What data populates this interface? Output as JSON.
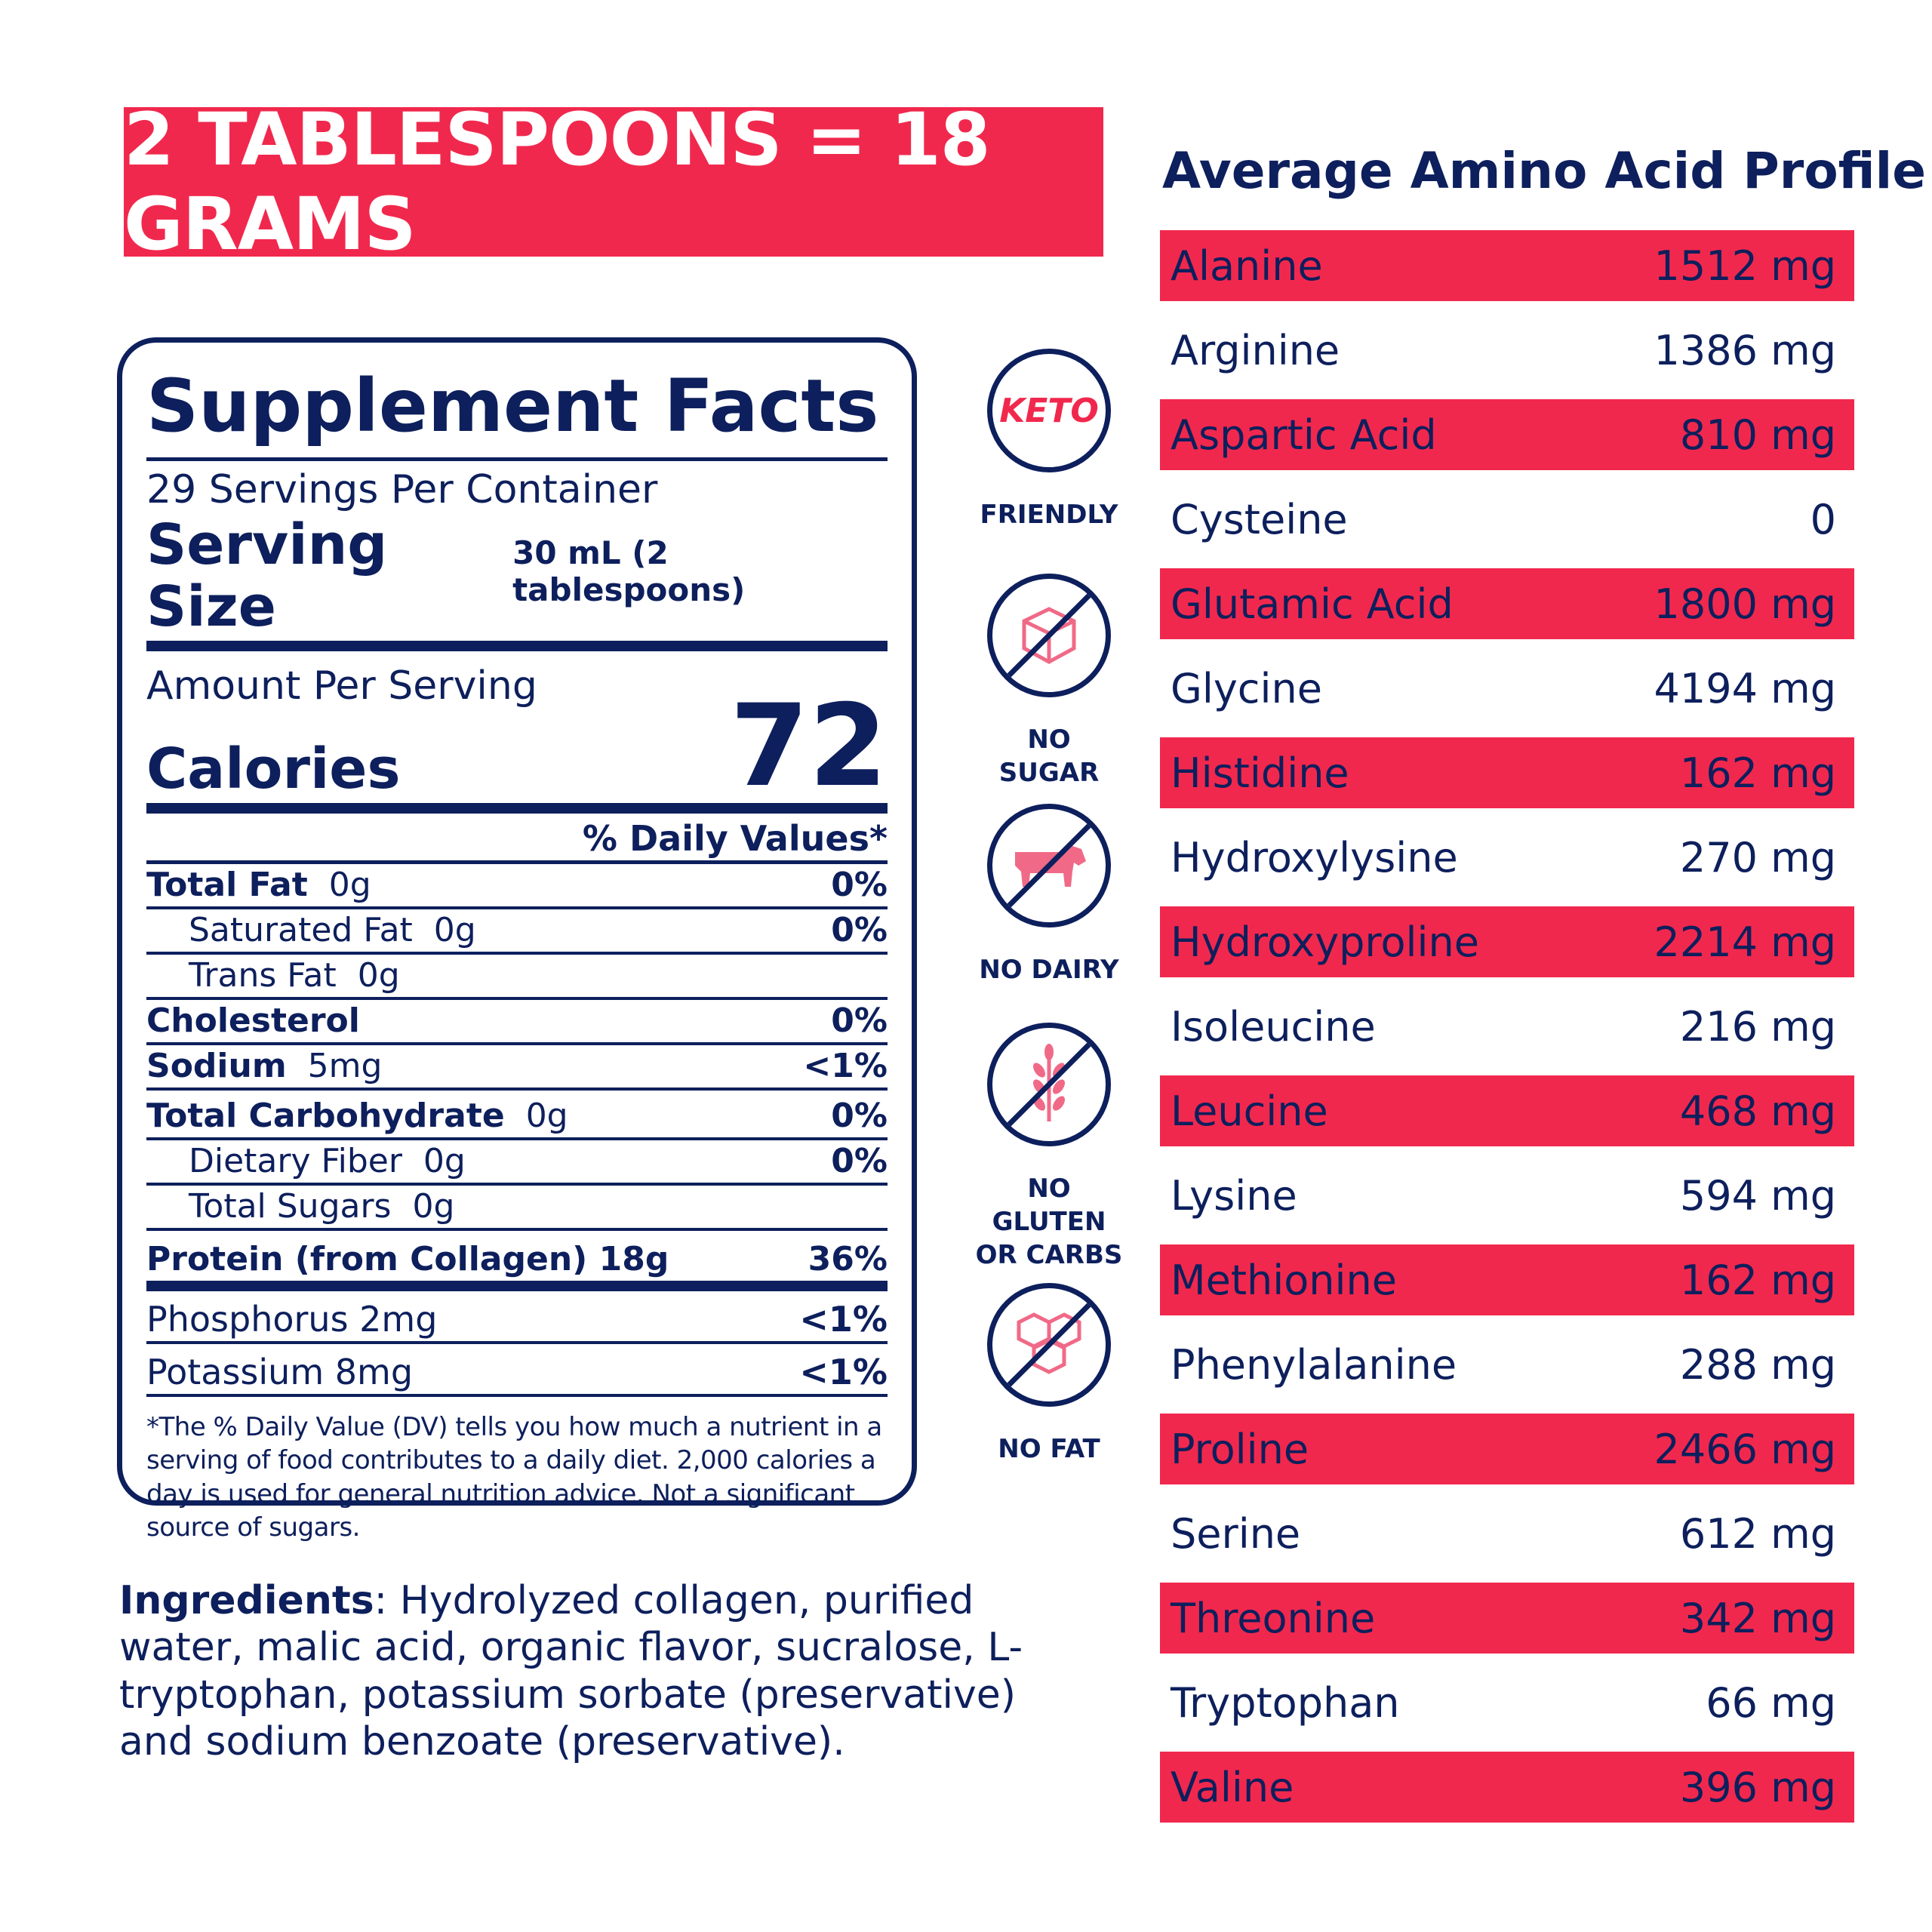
{
  "banner": {
    "text": "2 TABLESPOONS = 18 GRAMS"
  },
  "facts": {
    "title": "Supplement Facts",
    "servings": "29 Servings Per Container",
    "serving_size_label": "Serving Size",
    "serving_size_value": "30 mL (2 tablespoons)",
    "amount_label": "Amount Per Serving",
    "calories_label": "Calories",
    "calories_value": "72",
    "dv_header": "% Daily Values*",
    "rows": [
      {
        "label": "Total Fat",
        "amount": "0g",
        "dv": "0%"
      },
      {
        "label": "Saturated Fat",
        "amount": "0g",
        "dv": "0%"
      },
      {
        "label": "Trans Fat",
        "amount": "0g",
        "dv": ""
      },
      {
        "label": "Cholesterol",
        "amount": "",
        "dv": "0%"
      },
      {
        "label": "Sodium",
        "amount": "5mg",
        "dv": "<1%"
      },
      {
        "label": "Total Carbohydrate",
        "amount": "0g",
        "dv": "0%"
      },
      {
        "label": "Dietary Fiber",
        "amount": "0g",
        "dv": "0%"
      },
      {
        "label": "Total Sugars",
        "amount": "0g",
        "dv": ""
      },
      {
        "label": "Protein (from Collagen) 18g",
        "amount": "",
        "dv": "36%"
      },
      {
        "label": "Phosphorus 2mg",
        "amount": "",
        "dv": "<1%"
      },
      {
        "label": "Potassium 8mg",
        "amount": "",
        "dv": "<1%"
      }
    ],
    "footnote": "*The % Daily Value (DV) tells you how much a nutrient in a serving of food contributes to a daily diet. 2,000 calories a day is used for general nutrition advice. Not a significant source of sugars."
  },
  "ingredients": {
    "label": "Ingredients",
    "text": ": Hydrolyzed collagen, purified water, malic acid, organic flavor, sucralose, L-tryptophan,  potassium sorbate (preservative) and sodium benzoate (preservative)."
  },
  "badges": [
    {
      "icon": "keto-icon",
      "icon_text": "KETO",
      "label": "FRIENDLY"
    },
    {
      "icon": "no-sugar-icon",
      "label": "NO SUGAR"
    },
    {
      "icon": "no-dairy-icon",
      "label": "NO DAIRY"
    },
    {
      "icon": "no-gluten-icon",
      "label_line1": "NO GLUTEN",
      "label_line2": "OR CARBS"
    },
    {
      "icon": "no-fat-icon",
      "label": "NO FAT"
    }
  ],
  "amino": {
    "title": "Average Amino Acid Profile",
    "rows": [
      {
        "name": "Alanine",
        "value": "1512 mg"
      },
      {
        "name": "Arginine",
        "value": "1386 mg"
      },
      {
        "name": "Aspartic Acid",
        "value": "810 mg"
      },
      {
        "name": "Cysteine",
        "value": "0"
      },
      {
        "name": "Glutamic Acid",
        "value": "1800 mg"
      },
      {
        "name": "Glycine",
        "value": "4194 mg"
      },
      {
        "name": "Histidine",
        "value": "162 mg"
      },
      {
        "name": "Hydroxylysine",
        "value": "270 mg"
      },
      {
        "name": "Hydroxyproline",
        "value": "2214 mg"
      },
      {
        "name": "Isoleucine",
        "value": "216 mg"
      },
      {
        "name": "Leucine",
        "value": "468 mg"
      },
      {
        "name": "Lysine",
        "value": "594 mg"
      },
      {
        "name": "Methionine",
        "value": "162 mg"
      },
      {
        "name": "Phenylalanine",
        "value": "288 mg"
      },
      {
        "name": "Proline",
        "value": "2466 mg"
      },
      {
        "name": "Serine",
        "value": "612 mg"
      },
      {
        "name": "Threonine",
        "value": "342 mg"
      },
      {
        "name": "Tryptophan",
        "value": "66 mg"
      },
      {
        "name": "Valine",
        "value": "396 mg"
      }
    ]
  },
  "colors": {
    "navy": "#0d1f5c",
    "red": "#f1284d",
    "pink": "#f06a87"
  }
}
